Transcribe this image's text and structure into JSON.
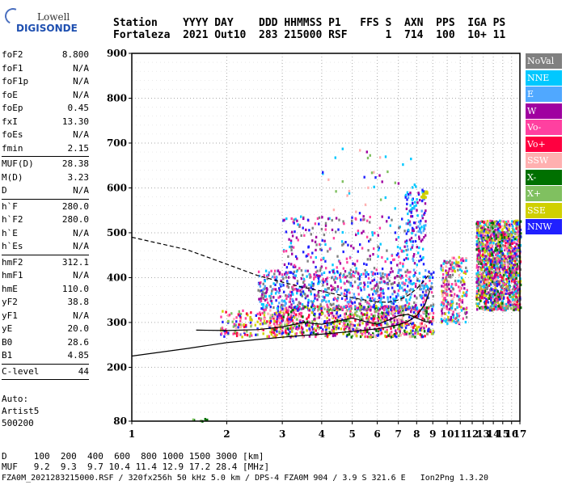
{
  "logo": {
    "line1": "Lowell",
    "line2": "DIGISONDE"
  },
  "header": {
    "row1": "Station    YYYY DAY    DDD HHMMSS P1   FFS S  AXN  PPS  IGA PS",
    "row2": "Fortaleza  2021 Out10  283 215000 RSF      1  714  100  10+ 11"
  },
  "params": [
    {
      "label": "foF2",
      "value": "8.800"
    },
    {
      "label": "foF1",
      "value": "N/A"
    },
    {
      "label": "foF1p",
      "value": "N/A"
    },
    {
      "label": "foE",
      "value": "N/A"
    },
    {
      "label": "foEp",
      "value": "0.45"
    },
    {
      "label": "fxI",
      "value": "13.30"
    },
    {
      "label": "foEs",
      "value": "N/A"
    },
    {
      "label": "fmin",
      "value": "2.15"
    },
    {
      "sep": true
    },
    {
      "label": "MUF(D)",
      "value": "28.38"
    },
    {
      "label": "M(D)",
      "value": "3.23"
    },
    {
      "label": "D",
      "value": "N/A"
    },
    {
      "sep": true
    },
    {
      "label": "h`F",
      "value": "280.0"
    },
    {
      "label": "h`F2",
      "value": "280.0"
    },
    {
      "label": "h`E",
      "value": "N/A"
    },
    {
      "label": "h`Es",
      "value": "N/A"
    },
    {
      "sep": true
    },
    {
      "label": "hmF2",
      "value": "312.1"
    },
    {
      "label": "hmF1",
      "value": "N/A"
    },
    {
      "label": "hmE",
      "value": "110.0"
    },
    {
      "label": "yF2",
      "value": "38.8"
    },
    {
      "label": "yF1",
      "value": "N/A"
    },
    {
      "label": "yE",
      "value": "20.0"
    },
    {
      "label": "B0",
      "value": "28.6"
    },
    {
      "label": "B1",
      "value": "4.85"
    },
    {
      "sep": true
    },
    {
      "label": "C-level",
      "value": "44"
    },
    {
      "sep": true
    }
  ],
  "auto": {
    "l1": "Auto:",
    "l2": "Artist5",
    "l3": "500200"
  },
  "footer": {
    "d_row": "D     100  200  400  600  800 1000 1500 3000 [km]",
    "muf_row": "MUF   9.2  9.3  9.7 10.4 11.4 12.9 17.2 28.4 [MHz]",
    "file_row": "FZA0M_2021283215000.RSF / 320fx256h 50 kHz 5.0 km / DPS-4 FZA0M 904 / 3.9 S 321.6 E   Ion2Png 1.3.20"
  },
  "legend": [
    {
      "label": "NoVal",
      "color": "#808080"
    },
    {
      "label": "NNE",
      "color": "#00c8ff"
    },
    {
      "label": "E",
      "color": "#50a8ff"
    },
    {
      "label": "W",
      "color": "#a000a0"
    },
    {
      "label": "Vo-",
      "color": "#ff40a0"
    },
    {
      "label": "Vo+",
      "color": "#ff0040"
    },
    {
      "label": "SSW",
      "color": "#ffb0b0"
    },
    {
      "label": "X-",
      "color": "#007000"
    },
    {
      "label": "X+",
      "color": "#80c060"
    },
    {
      "label": "SSE",
      "color": "#d0d000"
    },
    {
      "label": "NNW",
      "color": "#2020ff"
    }
  ],
  "chart_data": {
    "type": "scatter",
    "xlabel": "",
    "ylabel": "",
    "xlim": [
      1,
      17
    ],
    "ylim": [
      80,
      900
    ],
    "xticks": [
      1,
      2,
      3,
      4,
      5,
      6,
      7,
      8,
      9,
      10,
      11,
      12,
      13,
      14,
      15,
      16,
      17
    ],
    "yticks": [
      80,
      200,
      300,
      400,
      500,
      600,
      700,
      800,
      900
    ],
    "x_scale": "log",
    "grid": true,
    "clusters": [
      {
        "fmin": 1.9,
        "fmax": 3.0,
        "hmin": 270,
        "hmax": 330,
        "count": 180,
        "colors": [
          "#ff0040",
          "#ff40a0",
          "#ffb0b0",
          "#d0d000",
          "#80c060",
          "#2020ff"
        ]
      },
      {
        "fmin": 2.8,
        "fmax": 9.0,
        "hmin": 270,
        "hmax": 340,
        "count": 900,
        "colors": [
          "#ffb0b0",
          "#d0d000",
          "#ff40a0",
          "#ff0040",
          "#80c060",
          "#007000",
          "#2020ff",
          "#a000a0"
        ]
      },
      {
        "fmin": 2.5,
        "fmax": 9.0,
        "hmin": 330,
        "hmax": 420,
        "count": 700,
        "colors": [
          "#00c8ff",
          "#50a8ff",
          "#a000a0",
          "#ff40a0",
          "#2020ff",
          "#808080"
        ]
      },
      {
        "fmin": 3.0,
        "fmax": 7.5,
        "hmin": 400,
        "hmax": 540,
        "count": 260,
        "colors": [
          "#a000a0",
          "#ff40a0",
          "#00c8ff",
          "#2020ff",
          "#808080"
        ]
      },
      {
        "fmin": 7.3,
        "fmax": 8.5,
        "hmin": 430,
        "hmax": 600,
        "count": 120,
        "colors": [
          "#00c8ff",
          "#50a8ff",
          "#2020ff",
          "#a000a0"
        ]
      },
      {
        "fmin": 8.2,
        "fmax": 8.6,
        "hmin": 580,
        "hmax": 600,
        "count": 18,
        "colors": [
          "#d0d000"
        ]
      },
      {
        "fmin": 9.5,
        "fmax": 11.5,
        "hmin": 300,
        "hmax": 450,
        "count": 260,
        "colors": [
          "#ffb0b0",
          "#ff40a0",
          "#00c8ff",
          "#a000a0",
          "#d0d000",
          "#808080"
        ]
      },
      {
        "fmin": 12.3,
        "fmax": 17.0,
        "hmin": 330,
        "hmax": 530,
        "count": 1500,
        "colors": [
          "#2020ff",
          "#ff40a0",
          "#a000a0",
          "#ff0040",
          "#00c8ff",
          "#ffb0b0",
          "#d0d000",
          "#80c060",
          "#007000",
          "#808080"
        ]
      },
      {
        "fmin": 4.0,
        "fmax": 8.0,
        "hmin": 540,
        "hmax": 690,
        "count": 40,
        "colors": [
          "#ffb0b0",
          "#00c8ff",
          "#a000a0",
          "#80c060",
          "#2020ff"
        ]
      },
      {
        "fmin": 1.55,
        "fmax": 1.75,
        "hmin": 82,
        "hmax": 90,
        "count": 8,
        "colors": [
          "#007000",
          "#80c060"
        ]
      }
    ],
    "trace": {
      "x": [
        1.6,
        2.0,
        2.5,
        3.0,
        3.5,
        4.0,
        4.5,
        5.0,
        5.5,
        6.0,
        6.5,
        7.0,
        7.5,
        8.0,
        8.5,
        8.9
      ],
      "y": [
        283,
        282,
        284,
        290,
        300,
        296,
        303,
        310,
        302,
        296,
        305,
        315,
        318,
        310,
        302,
        300
      ]
    },
    "profile_upper": {
      "x": [
        1.0,
        1.5,
        2.0,
        2.5,
        3.0,
        3.5,
        4.0,
        4.5,
        5.0,
        5.5,
        6.0,
        6.5,
        7.0,
        7.5,
        8.0,
        8.5,
        8.8
      ],
      "y": [
        490,
        462,
        430,
        405,
        390,
        378,
        370,
        362,
        355,
        350,
        346,
        345,
        350,
        360,
        375,
        395,
        410
      ]
    },
    "profile_lower": {
      "x": [
        1.0,
        1.5,
        2.0,
        2.5,
        3.0,
        3.5,
        4.0,
        4.5,
        5.0,
        5.5,
        6.0,
        6.5,
        7.0,
        7.5,
        8.0,
        8.5,
        8.8
      ],
      "y": [
        225,
        242,
        255,
        262,
        267,
        271,
        274,
        277,
        280,
        283,
        286,
        290,
        295,
        302,
        315,
        340,
        370
      ]
    }
  }
}
